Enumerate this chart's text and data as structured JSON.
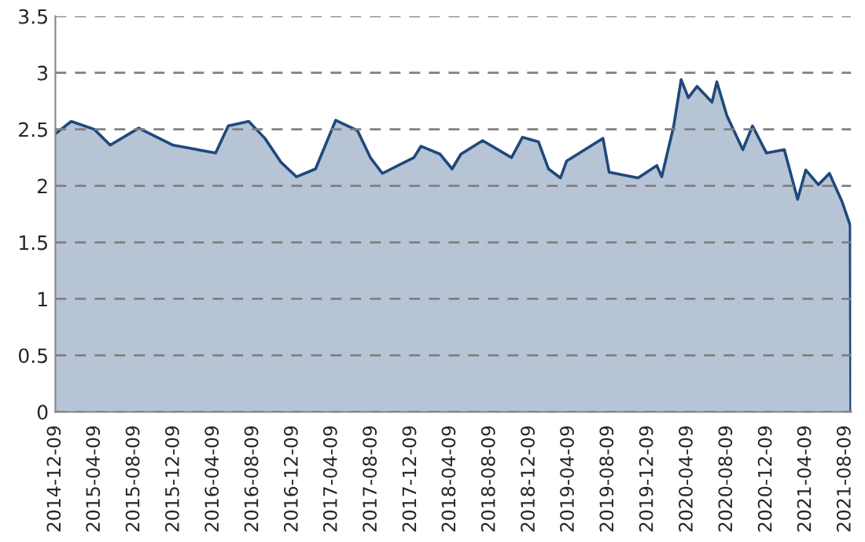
{
  "chart_data": {
    "type": "area",
    "grid": "y",
    "ylim": [
      0,
      3.5
    ],
    "yticks": [
      0,
      0.5,
      1,
      1.5,
      2,
      2.5,
      3,
      3.5
    ],
    "xlim": [
      "2014-12-09",
      "2021-08-27"
    ],
    "xticks": [
      "2014-12-09",
      "2015-04-09",
      "2015-08-09",
      "2015-12-09",
      "2016-04-09",
      "2016-08-09",
      "2016-12-09",
      "2017-04-09",
      "2017-08-09",
      "2017-12-09",
      "2018-04-09",
      "2018-08-09",
      "2018-12-09",
      "2019-04-09",
      "2019-08-09",
      "2019-12-09",
      "2020-04-09",
      "2020-08-09",
      "2020-12-09",
      "2021-04-09",
      "2021-08-09"
    ],
    "x": [
      "2014-12-09",
      "2015-01-27",
      "2015-04-08",
      "2015-05-27",
      "2015-08-23",
      "2015-12-07",
      "2016-04-16",
      "2016-05-25",
      "2016-07-27",
      "2016-09-15",
      "2016-11-03",
      "2016-12-21",
      "2017-02-18",
      "2017-04-21",
      "2017-06-27",
      "2017-08-06",
      "2017-09-12",
      "2017-12-18",
      "2018-01-09",
      "2018-03-09",
      "2018-04-15",
      "2018-05-12",
      "2018-07-18",
      "2018-10-15",
      "2018-11-18",
      "2019-01-06",
      "2019-02-06",
      "2019-03-15",
      "2019-04-03",
      "2019-07-24",
      "2019-08-12",
      "2019-11-09",
      "2020-01-06",
      "2020-01-21",
      "2020-02-27",
      "2020-03-21",
      "2020-04-12",
      "2020-05-09",
      "2020-06-24",
      "2020-07-09",
      "2020-08-09",
      "2020-09-27",
      "2020-10-27",
      "2020-12-09",
      "2021-02-02",
      "2021-03-15",
      "2021-04-09",
      "2021-05-18",
      "2021-06-21",
      "2021-07-30",
      "2021-08-24",
      "2021-08-26"
    ],
    "series": [
      {
        "color": "#1f497d",
        "values": [
          2.46,
          2.57,
          2.5,
          2.36,
          2.51,
          2.36,
          2.29,
          2.53,
          2.57,
          2.42,
          2.21,
          2.08,
          2.15,
          2.58,
          2.49,
          2.25,
          2.11,
          2.25,
          2.35,
          2.28,
          2.15,
          2.28,
          2.4,
          2.25,
          2.43,
          2.39,
          2.15,
          2.07,
          2.22,
          2.42,
          2.12,
          2.07,
          2.18,
          2.08,
          2.53,
          2.94,
          2.78,
          2.88,
          2.74,
          2.92,
          2.62,
          2.32,
          2.53,
          2.29,
          2.32,
          1.88,
          2.14,
          2.01,
          2.11,
          1.86,
          1.65,
          0
        ]
      }
    ]
  }
}
